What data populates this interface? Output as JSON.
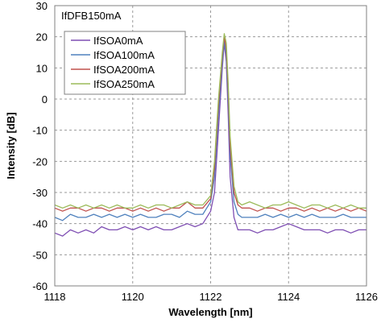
{
  "chart_data": {
    "type": "line",
    "title": "",
    "annotation": "IfDFB150mA",
    "xlabel": "Wavelength [nm]",
    "ylabel": "Intensity [dB]",
    "xlim": [
      1118,
      1126
    ],
    "ylim": [
      -60,
      30
    ],
    "xticks": [
      1118,
      1120,
      1122,
      1124,
      1126
    ],
    "yticks": [
      -60,
      -50,
      -40,
      -30,
      -20,
      -10,
      0,
      10,
      20,
      30
    ],
    "grid": true,
    "legend_position": "top-left",
    "series": [
      {
        "name": "IfSOA0mA",
        "color": "#7f4fb3",
        "x": [
          1118,
          1118.2,
          1118.4,
          1118.6,
          1118.8,
          1119,
          1119.2,
          1119.4,
          1119.6,
          1119.8,
          1120,
          1120.2,
          1120.4,
          1120.6,
          1120.8,
          1121,
          1121.2,
          1121.4,
          1121.6,
          1121.8,
          1122,
          1122.1,
          1122.2,
          1122.3,
          1122.35,
          1122.4,
          1122.45,
          1122.5,
          1122.6,
          1122.7,
          1122.8,
          1123,
          1123.2,
          1123.4,
          1123.6,
          1123.8,
          1124,
          1124.2,
          1124.4,
          1124.6,
          1124.8,
          1125,
          1125.2,
          1125.4,
          1125.6,
          1125.8,
          1126
        ],
        "y": [
          -43,
          -44,
          -42,
          -43,
          -42,
          -43,
          -41,
          -42,
          -42,
          -41,
          -42,
          -41,
          -42,
          -41,
          -42,
          -42,
          -41,
          -40,
          -41,
          -40,
          -36,
          -30,
          -10,
          10,
          18,
          12,
          -5,
          -25,
          -38,
          -42,
          -42,
          -42,
          -43,
          -42,
          -42,
          -41,
          -40,
          -41,
          -42,
          -42,
          -42,
          -43,
          -42,
          -42,
          -43,
          -42,
          -42
        ]
      },
      {
        "name": "IfSOA100mA",
        "color": "#4f81bd",
        "x": [
          1118,
          1118.2,
          1118.4,
          1118.6,
          1118.8,
          1119,
          1119.2,
          1119.4,
          1119.6,
          1119.8,
          1120,
          1120.2,
          1120.4,
          1120.6,
          1120.8,
          1121,
          1121.2,
          1121.4,
          1121.6,
          1121.8,
          1122,
          1122.1,
          1122.2,
          1122.3,
          1122.35,
          1122.4,
          1122.45,
          1122.5,
          1122.6,
          1122.7,
          1122.8,
          1123,
          1123.2,
          1123.4,
          1123.6,
          1123.8,
          1124,
          1124.2,
          1124.4,
          1124.6,
          1124.8,
          1125,
          1125.2,
          1125.4,
          1125.6,
          1125.8,
          1126
        ],
        "y": [
          -38,
          -39,
          -37,
          -38,
          -38,
          -37,
          -38,
          -37,
          -38,
          -37,
          -38,
          -37,
          -38,
          -38,
          -37,
          -37,
          -38,
          -36,
          -37,
          -37,
          -33,
          -25,
          -5,
          12,
          19,
          14,
          0,
          -18,
          -33,
          -37,
          -38,
          -38,
          -38,
          -37,
          -38,
          -37,
          -38,
          -37,
          -38,
          -37,
          -38,
          -38,
          -38,
          -37,
          -38,
          -38,
          -38
        ]
      },
      {
        "name": "IfSOA200mA",
        "color": "#c0504d",
        "x": [
          1118,
          1118.2,
          1118.4,
          1118.6,
          1118.8,
          1119,
          1119.2,
          1119.4,
          1119.6,
          1119.8,
          1120,
          1120.2,
          1120.4,
          1120.6,
          1120.8,
          1121,
          1121.2,
          1121.4,
          1121.6,
          1121.8,
          1122,
          1122.1,
          1122.2,
          1122.3,
          1122.35,
          1122.4,
          1122.45,
          1122.5,
          1122.6,
          1122.7,
          1122.8,
          1123,
          1123.2,
          1123.4,
          1123.6,
          1123.8,
          1124,
          1124.2,
          1124.4,
          1124.6,
          1124.8,
          1125,
          1125.2,
          1125.4,
          1125.6,
          1125.8,
          1126
        ],
        "y": [
          -35,
          -36,
          -35,
          -35,
          -36,
          -35,
          -35,
          -36,
          -35,
          -35,
          -36,
          -35,
          -36,
          -35,
          -36,
          -35,
          -35,
          -33,
          -35,
          -35,
          -32,
          -22,
          -2,
          14,
          20,
          16,
          3,
          -15,
          -30,
          -34,
          -35,
          -35,
          -36,
          -35,
          -35,
          -36,
          -35,
          -35,
          -36,
          -35,
          -36,
          -35,
          -36,
          -35,
          -36,
          -35,
          -36
        ]
      },
      {
        "name": "IfSOA250mA",
        "color": "#9bbb59",
        "x": [
          1118,
          1118.2,
          1118.4,
          1118.6,
          1118.8,
          1119,
          1119.2,
          1119.4,
          1119.6,
          1119.8,
          1120,
          1120.2,
          1120.4,
          1120.6,
          1120.8,
          1121,
          1121.2,
          1121.4,
          1121.6,
          1121.8,
          1122,
          1122.1,
          1122.2,
          1122.3,
          1122.35,
          1122.4,
          1122.45,
          1122.5,
          1122.6,
          1122.7,
          1122.8,
          1123,
          1123.2,
          1123.4,
          1123.6,
          1123.8,
          1124,
          1124.2,
          1124.4,
          1124.6,
          1124.8,
          1125,
          1125.2,
          1125.4,
          1125.6,
          1125.8,
          1126
        ],
        "y": [
          -34,
          -35,
          -34,
          -35,
          -34,
          -35,
          -34,
          -35,
          -34,
          -35,
          -35,
          -34,
          -35,
          -34,
          -34,
          -35,
          -34,
          -33,
          -34,
          -34,
          -31,
          -20,
          0,
          15,
          21,
          18,
          5,
          -12,
          -28,
          -33,
          -34,
          -33,
          -34,
          -35,
          -34,
          -34,
          -33,
          -34,
          -35,
          -34,
          -34,
          -35,
          -34,
          -35,
          -34,
          -35,
          -35
        ]
      }
    ]
  }
}
